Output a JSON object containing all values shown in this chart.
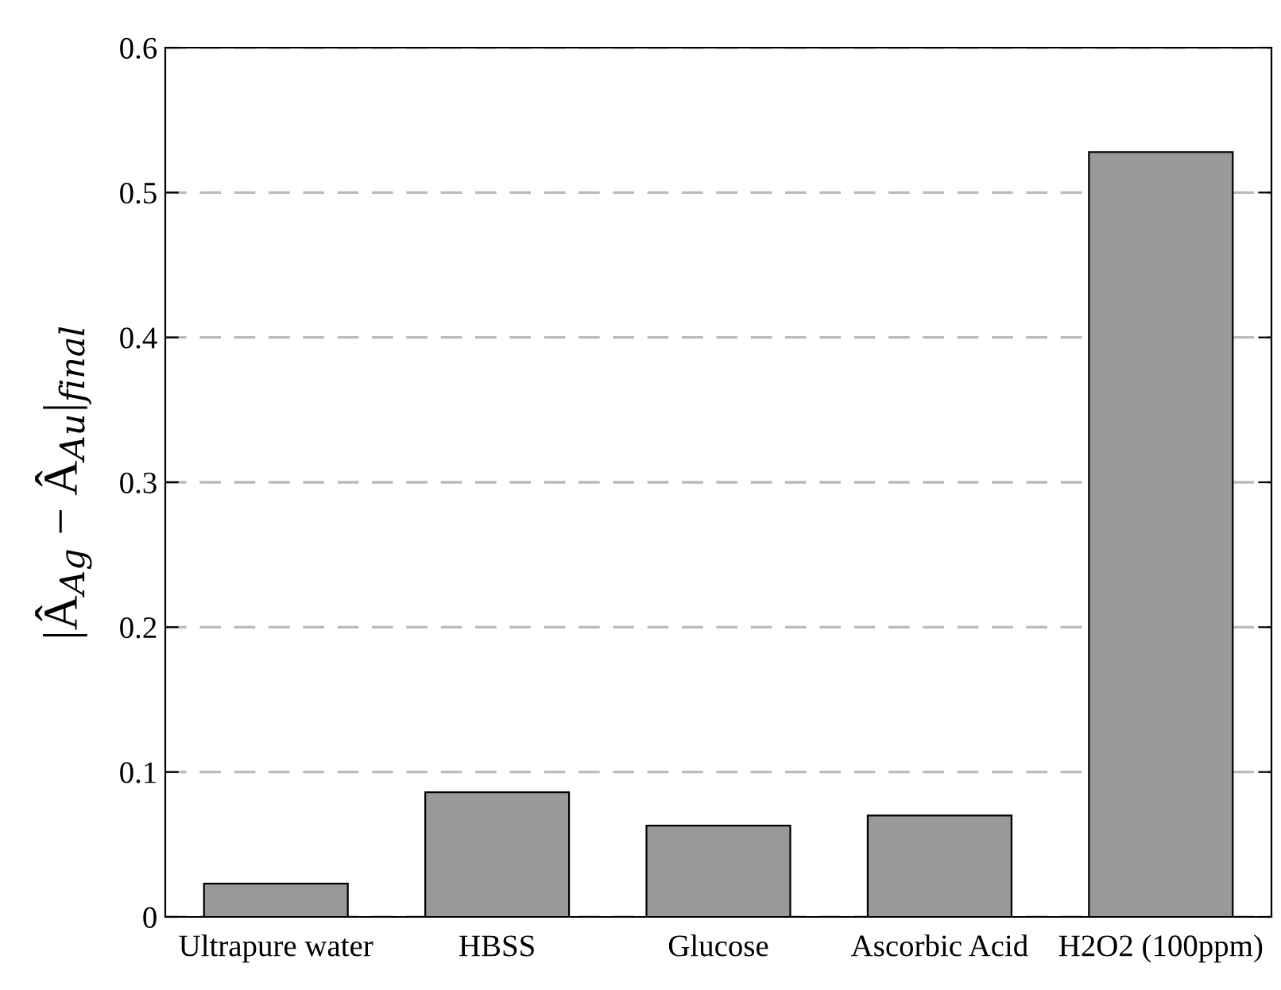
{
  "chart_data": {
    "type": "bar",
    "ylabel": "|Â$_{Ag}$ − Â$_{Au}$|$_{final}$",
    "categories": [
      "Ultrapure water",
      "HBSS",
      "Glucose",
      "Ascorbic Acid",
      "H2O2 (100ppm)"
    ],
    "values": [
      0.023,
      0.086,
      0.063,
      0.07,
      0.528
    ],
    "color": "#999999",
    "ylim": [
      0,
      0.6
    ],
    "yticks": [
      0,
      0.1,
      0.2,
      0.3,
      0.4,
      0.5,
      0.6
    ],
    "grid": "y",
    "legend": false
  }
}
